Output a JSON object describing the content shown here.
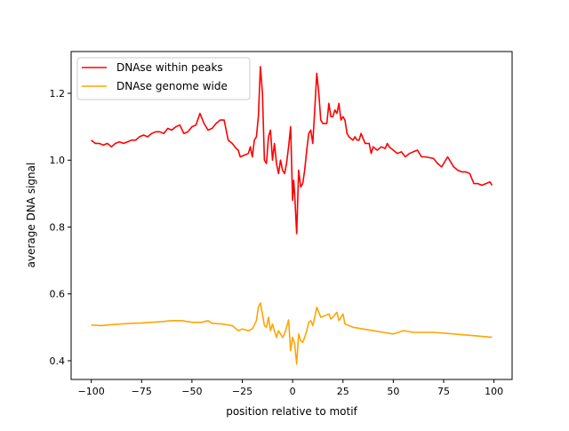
{
  "chart_data": {
    "type": "line",
    "title": "",
    "xlabel": "position relative to motif",
    "ylabel": "average DNA signal",
    "xlim": [
      -110,
      109
    ],
    "ylim": [
      0.344,
      1.325
    ],
    "xticks": [
      -100,
      -75,
      -50,
      -25,
      0,
      25,
      50,
      75,
      100
    ],
    "xtick_labels": [
      "−100",
      "−75",
      "−50",
      "−25",
      "0",
      "25",
      "50",
      "75",
      "100"
    ],
    "yticks": [
      0.4,
      0.6,
      0.8,
      1.0,
      1.2
    ],
    "ytick_labels": [
      "0.4",
      "0.6",
      "0.8",
      "1.0",
      "1.2"
    ],
    "grid": false,
    "legend_position": "top-left",
    "series": [
      {
        "name": "DNAse within peaks",
        "color": "#ff0000",
        "x": [
          -100,
          -98,
          -96,
          -94,
          -92,
          -90,
          -88,
          -86,
          -84,
          -82,
          -80,
          -78,
          -76,
          -74,
          -72,
          -70,
          -68,
          -66,
          -64,
          -62,
          -60,
          -58,
          -56,
          -54,
          -52,
          -50,
          -48,
          -46,
          -44,
          -42,
          -40,
          -38,
          -36,
          -34,
          -32,
          -30,
          -28,
          -27,
          -26,
          -24,
          -22,
          -21,
          -20,
          -19,
          -18,
          -17,
          -16,
          -15,
          -14,
          -13,
          -12,
          -11,
          -10,
          -9,
          -8,
          -7,
          -6,
          -5,
          -4,
          -3,
          -2,
          -1,
          0,
          0.5,
          1,
          2,
          3,
          4,
          5,
          6,
          7,
          8,
          9,
          10,
          11,
          12,
          13,
          14,
          15,
          16,
          17,
          18,
          19,
          20,
          21,
          22,
          23,
          24,
          25,
          26,
          27,
          28,
          30,
          31,
          32,
          33,
          34,
          36,
          38,
          39,
          40,
          42,
          44,
          46,
          47,
          48,
          50,
          52,
          54,
          56,
          58,
          60,
          62,
          64,
          66,
          70,
          72,
          74,
          75,
          77,
          80,
          82,
          84,
          86,
          88,
          90,
          92,
          94,
          96,
          98,
          99
        ],
        "y": [
          1.06,
          1.05,
          1.05,
          1.045,
          1.05,
          1.04,
          1.05,
          1.055,
          1.05,
          1.055,
          1.06,
          1.06,
          1.07,
          1.075,
          1.07,
          1.08,
          1.085,
          1.085,
          1.08,
          1.095,
          1.09,
          1.1,
          1.105,
          1.08,
          1.085,
          1.1,
          1.105,
          1.14,
          1.11,
          1.09,
          1.095,
          1.11,
          1.12,
          1.12,
          1.06,
          1.05,
          1.035,
          1.03,
          1.01,
          1.015,
          1.02,
          1.04,
          1.01,
          1.06,
          1.07,
          1.13,
          1.28,
          1.2,
          1.0,
          0.99,
          1.07,
          1.09,
          1.0,
          1.05,
          0.99,
          0.96,
          1.0,
          0.97,
          0.96,
          0.99,
          1.04,
          1.1,
          0.88,
          0.94,
          0.9,
          0.78,
          0.97,
          0.92,
          0.93,
          0.97,
          1.03,
          1.08,
          1.09,
          1.05,
          1.15,
          1.26,
          1.2,
          1.12,
          1.11,
          1.11,
          1.11,
          1.17,
          1.13,
          1.13,
          1.15,
          1.14,
          1.17,
          1.12,
          1.13,
          1.12,
          1.08,
          1.07,
          1.06,
          1.07,
          1.06,
          1.06,
          1.08,
          1.05,
          1.05,
          1.02,
          1.04,
          1.03,
          1.04,
          1.035,
          1.05,
          1.04,
          1.03,
          1.02,
          1.025,
          1.01,
          1.02,
          1.025,
          1.03,
          1.01,
          1.01,
          1.005,
          0.99,
          0.98,
          0.99,
          1.01,
          0.98,
          0.97,
          0.965,
          0.965,
          0.96,
          0.93,
          0.93,
          0.925,
          0.93,
          0.935,
          0.925
        ]
      },
      {
        "name": "DNAse genome wide",
        "color": "#ffa500",
        "x": [
          -100,
          -95,
          -90,
          -85,
          -80,
          -75,
          -70,
          -65,
          -60,
          -55,
          -50,
          -45,
          -42,
          -40,
          -35,
          -30,
          -27,
          -25,
          -22,
          -20,
          -18,
          -17,
          -16,
          -15,
          -14,
          -13,
          -12,
          -11,
          -10,
          -9,
          -8,
          -7,
          -6,
          -5,
          -4,
          -3,
          -2,
          -1,
          0,
          1,
          2,
          3,
          4,
          5,
          6,
          7,
          8,
          9,
          10,
          11,
          12,
          13,
          14,
          16,
          18,
          19,
          20,
          22,
          23,
          24,
          25,
          26,
          30,
          35,
          40,
          45,
          50,
          55,
          60,
          70,
          80,
          90,
          99
        ],
        "y": [
          0.507,
          0.505,
          0.508,
          0.51,
          0.512,
          0.513,
          0.515,
          0.517,
          0.52,
          0.52,
          0.515,
          0.515,
          0.52,
          0.512,
          0.51,
          0.505,
          0.49,
          0.495,
          0.49,
          0.495,
          0.52,
          0.56,
          0.573,
          0.54,
          0.505,
          0.5,
          0.53,
          0.49,
          0.51,
          0.49,
          0.47,
          0.49,
          0.48,
          0.47,
          0.48,
          0.5,
          0.522,
          0.43,
          0.47,
          0.45,
          0.39,
          0.48,
          0.46,
          0.455,
          0.47,
          0.49,
          0.515,
          0.52,
          0.505,
          0.53,
          0.56,
          0.545,
          0.53,
          0.535,
          0.54,
          0.525,
          0.53,
          0.545,
          0.52,
          0.53,
          0.54,
          0.51,
          0.5,
          0.495,
          0.49,
          0.485,
          0.48,
          0.49,
          0.485,
          0.485,
          0.48,
          0.475,
          0.47
        ]
      }
    ]
  }
}
